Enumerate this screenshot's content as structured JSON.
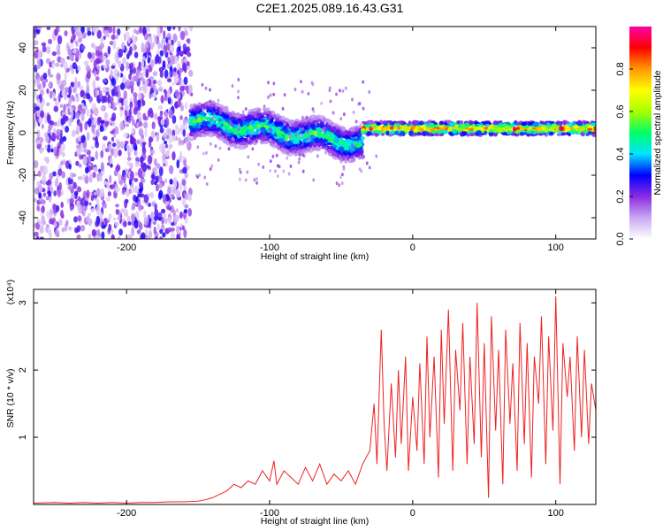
{
  "figure_title": "C2E1.2025.089.16.43.G31",
  "chart_data": [
    {
      "type": "heatmap",
      "xlabel": "Height of straight line (km)",
      "ylabel": "Frequency (Hz)",
      "xlim": [
        -265,
        128
      ],
      "ylim": [
        -50,
        50
      ],
      "xticks": [
        -200,
        -100,
        0,
        100
      ],
      "yticks": [
        -40,
        -20,
        0,
        20,
        40
      ],
      "colorbar": {
        "label": "Normalized spectral amplitude",
        "range": [
          0,
          1
        ],
        "ticks": [
          "0.0",
          "0.2",
          "0.4",
          "0.6",
          "0.8"
        ],
        "colormap": [
          "#ffffff",
          "#c9a8f2",
          "#8a2be2",
          "#0000ff",
          "#00e5ff",
          "#00ff66",
          "#a8ff00",
          "#ffff00",
          "#ff9900",
          "#ff0000",
          "#ff00aa"
        ]
      },
      "regions": [
        {
          "x_range": [
            -265,
            -155
          ],
          "freq_range": [
            -50,
            50
          ],
          "amplitude": [
            0.05,
            0.3
          ],
          "pattern": "broadband noise"
        },
        {
          "x_range": [
            -155,
            -35
          ],
          "freq_center": [
            6,
            -5
          ],
          "half_width": 8,
          "amplitude": [
            0.3,
            0.6
          ],
          "pattern": "noisy band drifting downward"
        },
        {
          "x_range": [
            -35,
            128
          ],
          "freq_center": [
            2,
            2
          ],
          "half_width": 3,
          "amplitude": [
            0.5,
            1.0
          ],
          "pattern": "narrow strong band"
        }
      ]
    },
    {
      "type": "line",
      "xlabel": "Height of straight line (km)",
      "ylabel": "SNR (10 * v/v)",
      "y_scale_note": "(x10⁴)",
      "xlim": [
        -265,
        128
      ],
      "ylim": [
        0,
        3.2
      ],
      "xticks": [
        -200,
        -100,
        0,
        100
      ],
      "yticks": [
        1,
        2,
        3
      ],
      "color": "#ee2222",
      "series": [
        {
          "x": [
            -265,
            -250,
            -240,
            -230,
            -220,
            -210,
            -200,
            -190,
            -180,
            -170,
            -160,
            -150,
            -145,
            -140,
            -135,
            -130,
            -125,
            -120,
            -115,
            -110,
            -105,
            -100,
            -97,
            -95,
            -90,
            -85,
            -80,
            -75,
            -70,
            -65,
            -60,
            -55,
            -50,
            -45,
            -40,
            -35,
            -30,
            -27,
            -25,
            -22,
            -20,
            -18,
            -15,
            -12,
            -10,
            -8,
            -5,
            -3,
            0,
            3,
            5,
            8,
            10,
            12,
            15,
            18,
            20,
            22,
            25,
            28,
            30,
            33,
            35,
            38,
            40,
            43,
            45,
            48,
            50,
            53,
            55,
            58,
            60,
            63,
            65,
            68,
            70,
            73,
            75,
            78,
            80,
            83,
            85,
            88,
            90,
            93,
            95,
            98,
            100,
            103,
            105,
            108,
            110,
            113,
            115,
            118,
            120,
            123,
            125,
            128
          ],
          "y": [
            0.02,
            0.03,
            0.02,
            0.03,
            0.02,
            0.03,
            0.02,
            0.03,
            0.03,
            0.04,
            0.04,
            0.05,
            0.07,
            0.1,
            0.15,
            0.2,
            0.3,
            0.25,
            0.35,
            0.3,
            0.5,
            0.35,
            0.65,
            0.3,
            0.5,
            0.4,
            0.3,
            0.55,
            0.35,
            0.6,
            0.3,
            0.45,
            0.35,
            0.5,
            0.3,
            0.6,
            0.8,
            1.5,
            0.6,
            2.6,
            1.2,
            0.5,
            1.8,
            0.7,
            2.0,
            0.9,
            2.2,
            0.5,
            1.6,
            0.8,
            2.1,
            0.6,
            2.5,
            1.0,
            2.2,
            0.4,
            2.6,
            1.2,
            2.9,
            0.5,
            2.3,
            1.4,
            2.7,
            0.6,
            2.2,
            0.9,
            3.0,
            0.7,
            2.4,
            0.1,
            2.8,
            1.1,
            2.3,
            0.3,
            2.6,
            1.2,
            2.1,
            0.5,
            2.7,
            0.9,
            2.4,
            0.4,
            2.2,
            1.5,
            2.8,
            0.6,
            2.5,
            1.1,
            3.1,
            0.3,
            2.4,
            1.6,
            2.2,
            0.8,
            2.5,
            1.0,
            2.3,
            0.9,
            1.8,
            1.4
          ]
        }
      ]
    }
  ]
}
